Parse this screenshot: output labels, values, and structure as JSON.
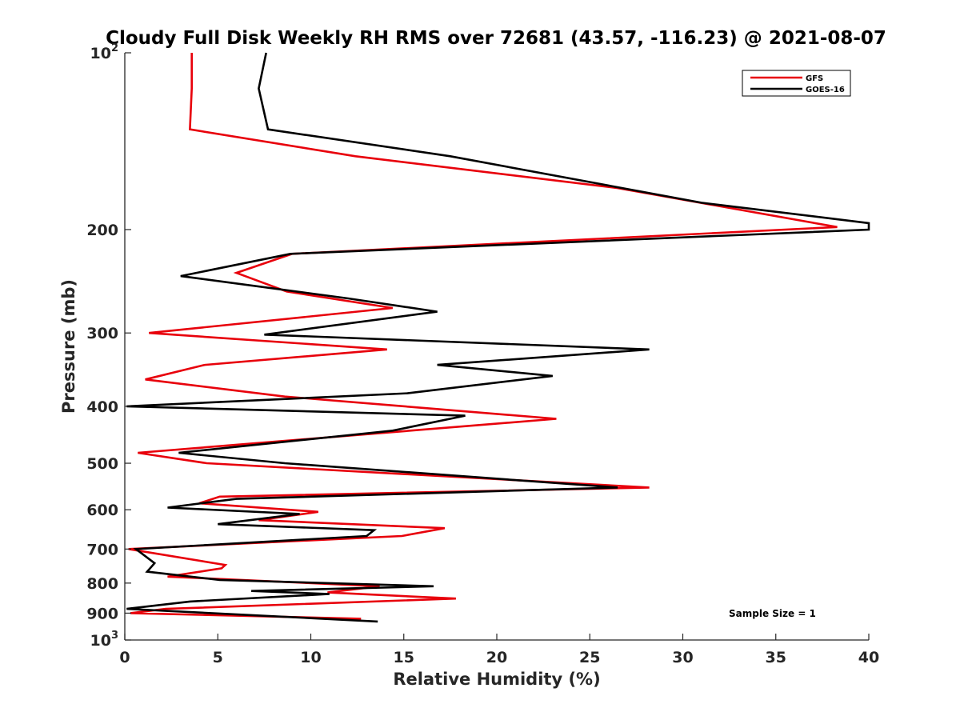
{
  "chart_data": {
    "type": "line",
    "title": "Cloudy Full Disk Weekly RH RMS over 72681 (43.57, -116.23) @ 2021-08-07",
    "xlabel": "Relative Humidity (%)",
    "ylabel": "Pressure (mb)",
    "xlim": [
      0,
      40
    ],
    "ylim": [
      100,
      1000
    ],
    "y_scale": "log",
    "y_reversed": true,
    "grid": false,
    "legend_position": "top-right",
    "x_ticks": [
      "0",
      "5",
      "10",
      "15",
      "20",
      "25",
      "30",
      "35",
      "40"
    ],
    "y_ticks": [
      {
        "value": 100,
        "base": "10",
        "exp": "2"
      },
      {
        "value": 200,
        "label": "200"
      },
      {
        "value": 300,
        "label": "300"
      },
      {
        "value": 400,
        "label": "400"
      },
      {
        "value": 500,
        "label": "500"
      },
      {
        "value": 600,
        "label": "600"
      },
      {
        "value": 700,
        "label": "700"
      },
      {
        "value": 800,
        "label": "800"
      },
      {
        "value": 900,
        "label": "900"
      },
      {
        "value": 1000,
        "base": "10",
        "exp": "3"
      }
    ],
    "series": [
      {
        "name": "GFS",
        "color": "#e8000b",
        "points": [
          [
            3.6,
            100
          ],
          [
            3.6,
            115
          ],
          [
            3.5,
            135
          ],
          [
            12.4,
            150
          ],
          [
            26.5,
            170
          ],
          [
            38.3,
            198
          ],
          [
            9,
            220
          ],
          [
            6,
            237
          ],
          [
            8.7,
            255
          ],
          [
            14.4,
            272
          ],
          [
            1.3,
            300
          ],
          [
            14.1,
            320
          ],
          [
            4.3,
            340
          ],
          [
            1.1,
            360
          ],
          [
            8.6,
            385
          ],
          [
            23.2,
            420
          ],
          [
            0.7,
            480
          ],
          [
            4.4,
            500
          ],
          [
            28.2,
            550
          ],
          [
            5.1,
            570
          ],
          [
            4,
            585
          ],
          [
            10.4,
            605
          ],
          [
            7.2,
            625
          ],
          [
            17.2,
            645
          ],
          [
            14.9,
            665
          ],
          [
            0.2,
            700
          ],
          [
            5.4,
            745
          ],
          [
            5.2,
            755
          ],
          [
            2.3,
            780
          ],
          [
            13.7,
            810
          ],
          [
            10.9,
            830
          ],
          [
            17.8,
            850
          ],
          [
            2.2,
            885
          ],
          [
            0.3,
            900
          ],
          [
            12.7,
            920
          ]
        ]
      },
      {
        "name": "GOES-16",
        "color": "#000000",
        "points": [
          [
            7.6,
            100
          ],
          [
            7.2,
            115
          ],
          [
            7.7,
            135
          ],
          [
            17.5,
            150
          ],
          [
            31,
            180
          ],
          [
            40,
            195
          ],
          [
            40,
            200
          ],
          [
            8.9,
            220
          ],
          [
            3,
            240
          ],
          [
            12,
            262
          ],
          [
            16.8,
            276
          ],
          [
            7.5,
            302
          ],
          [
            28.2,
            320
          ],
          [
            16.8,
            340
          ],
          [
            23,
            355
          ],
          [
            15.2,
            380
          ],
          [
            0.1,
            400
          ],
          [
            18.3,
            415
          ],
          [
            14.4,
            440
          ],
          [
            2.9,
            480
          ],
          [
            8.6,
            500
          ],
          [
            26.5,
            550
          ],
          [
            6,
            575
          ],
          [
            2.3,
            595
          ],
          [
            9.4,
            610
          ],
          [
            5,
            635
          ],
          [
            13.4,
            650
          ],
          [
            13,
            665
          ],
          [
            0.6,
            700
          ],
          [
            1.6,
            740
          ],
          [
            1.2,
            765
          ],
          [
            5.1,
            790
          ],
          [
            16.6,
            810
          ],
          [
            6.8,
            825
          ],
          [
            11,
            835
          ],
          [
            3.5,
            860
          ],
          [
            0.1,
            885
          ],
          [
            13.6,
            930
          ]
        ]
      }
    ],
    "annotations": [
      "Sample Size = 1"
    ]
  }
}
